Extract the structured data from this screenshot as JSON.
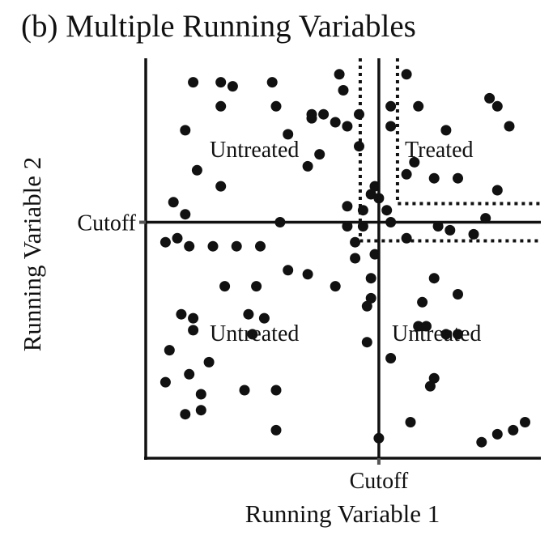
{
  "chart_data": {
    "type": "scatter",
    "title": "(b) Multiple Running Variables",
    "xlabel": "Running Variable 1",
    "ylabel": "Running Variable 2",
    "x_cutoff_label": "Cutoff",
    "y_cutoff_label": "Cutoff",
    "xlim": [
      0,
      1
    ],
    "ylim": [
      0,
      1
    ],
    "x_cutoff": 0.59,
    "y_cutoff": 0.59,
    "grid": false,
    "regions": [
      {
        "label": "Untreated",
        "position": "top-left"
      },
      {
        "label": "Treated",
        "position": "top-right"
      },
      {
        "label": "Untreated",
        "position": "bottom-left"
      },
      {
        "label": "Untreated",
        "position": "bottom-right"
      }
    ],
    "points": [
      [
        0.12,
        0.94
      ],
      [
        0.19,
        0.94
      ],
      [
        0.22,
        0.93
      ],
      [
        0.32,
        0.94
      ],
      [
        0.49,
        0.96
      ],
      [
        0.66,
        0.96
      ],
      [
        0.19,
        0.88
      ],
      [
        0.33,
        0.88
      ],
      [
        0.5,
        0.92
      ],
      [
        0.62,
        0.88
      ],
      [
        0.69,
        0.88
      ],
      [
        0.87,
        0.9
      ],
      [
        0.89,
        0.88
      ],
      [
        0.92,
        0.83
      ],
      [
        0.1,
        0.82
      ],
      [
        0.36,
        0.81
      ],
      [
        0.42,
        0.85
      ],
      [
        0.45,
        0.86
      ],
      [
        0.48,
        0.84
      ],
      [
        0.42,
        0.86
      ],
      [
        0.51,
        0.83
      ],
      [
        0.54,
        0.86
      ],
      [
        0.62,
        0.83
      ],
      [
        0.76,
        0.82
      ],
      [
        0.54,
        0.78
      ],
      [
        0.44,
        0.76
      ],
      [
        0.41,
        0.73
      ],
      [
        0.13,
        0.72
      ],
      [
        0.19,
        0.68
      ],
      [
        0.68,
        0.74
      ],
      [
        0.66,
        0.71
      ],
      [
        0.73,
        0.7
      ],
      [
        0.79,
        0.7
      ],
      [
        0.58,
        0.68
      ],
      [
        0.57,
        0.66
      ],
      [
        0.59,
        0.65
      ],
      [
        0.89,
        0.67
      ],
      [
        0.07,
        0.64
      ],
      [
        0.1,
        0.61
      ],
      [
        0.51,
        0.63
      ],
      [
        0.55,
        0.62
      ],
      [
        0.61,
        0.62
      ],
      [
        0.51,
        0.58
      ],
      [
        0.55,
        0.58
      ],
      [
        0.74,
        0.58
      ],
      [
        0.77,
        0.57
      ],
      [
        0.83,
        0.56
      ],
      [
        0.86,
        0.6
      ],
      [
        0.34,
        0.59
      ],
      [
        0.62,
        0.59
      ],
      [
        0.05,
        0.54
      ],
      [
        0.08,
        0.55
      ],
      [
        0.11,
        0.53
      ],
      [
        0.17,
        0.53
      ],
      [
        0.23,
        0.53
      ],
      [
        0.29,
        0.53
      ],
      [
        0.53,
        0.54
      ],
      [
        0.66,
        0.55
      ],
      [
        0.58,
        0.51
      ],
      [
        0.53,
        0.5
      ],
      [
        0.36,
        0.47
      ],
      [
        0.41,
        0.46
      ],
      [
        0.57,
        0.45
      ],
      [
        0.73,
        0.45
      ],
      [
        0.2,
        0.43
      ],
      [
        0.28,
        0.43
      ],
      [
        0.48,
        0.43
      ],
      [
        0.57,
        0.4
      ],
      [
        0.79,
        0.41
      ],
      [
        0.56,
        0.38
      ],
      [
        0.7,
        0.39
      ],
      [
        0.26,
        0.36
      ],
      [
        0.3,
        0.35
      ],
      [
        0.09,
        0.36
      ],
      [
        0.12,
        0.35
      ],
      [
        0.12,
        0.32
      ],
      [
        0.27,
        0.31
      ],
      [
        0.69,
        0.33
      ],
      [
        0.71,
        0.33
      ],
      [
        0.76,
        0.31
      ],
      [
        0.79,
        0.31
      ],
      [
        0.56,
        0.29
      ],
      [
        0.06,
        0.27
      ],
      [
        0.16,
        0.24
      ],
      [
        0.62,
        0.25
      ],
      [
        0.11,
        0.21
      ],
      [
        0.73,
        0.2
      ],
      [
        0.72,
        0.18
      ],
      [
        0.05,
        0.19
      ],
      [
        0.25,
        0.17
      ],
      [
        0.33,
        0.17
      ],
      [
        0.14,
        0.16
      ],
      [
        0.14,
        0.12
      ],
      [
        0.1,
        0.11
      ],
      [
        0.67,
        0.09
      ],
      [
        0.33,
        0.07
      ],
      [
        0.59,
        0.05
      ],
      [
        0.85,
        0.04
      ],
      [
        0.89,
        0.06
      ],
      [
        0.93,
        0.07
      ],
      [
        0.96,
        0.09
      ]
    ]
  }
}
